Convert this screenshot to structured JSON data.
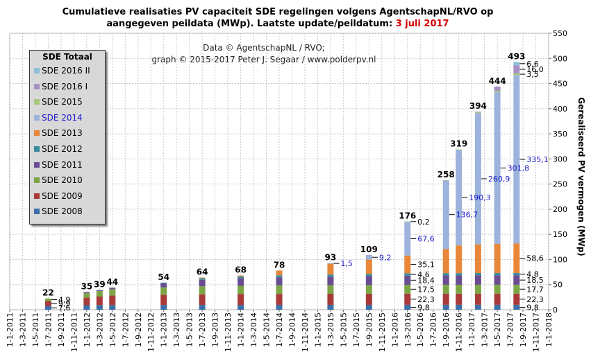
{
  "title": {
    "line1": "Cumulatieve realisaties PV capaciteit SDE regelingen volgens AgentschapNL/RVO  op",
    "line2_prefix": "aangegeven peildata (MWp). Laatste update/peildatum:",
    "line2_date": "3 juli 2017"
  },
  "credit": {
    "line1": "Data © AgentschapNL / RVO;",
    "line2": "graph © 2015-2017 Peter J. Segaar / www.polderpv.nl"
  },
  "legend": {
    "title": "SDE Totaal",
    "items": [
      {
        "label": "SDE 2016 II",
        "color": "#8fbfd8",
        "text_color": "#000000"
      },
      {
        "label": "SDE 2016 I",
        "color": "#a88fc4",
        "text_color": "#000000"
      },
      {
        "label": "SDE 2015",
        "color": "#a5c878",
        "text_color": "#000000"
      },
      {
        "label": "SDE 2014",
        "color": "#9db3dc",
        "text_color": "#1a1acc"
      },
      {
        "label": "SDE 2013",
        "color": "#e8873a",
        "text_color": "#000000"
      },
      {
        "label": "SDE 2012",
        "color": "#3a8c9c",
        "text_color": "#000000"
      },
      {
        "label": "SDE 2011",
        "color": "#6a4c92",
        "text_color": "#000000"
      },
      {
        "label": "SDE 2010",
        "color": "#7ca645",
        "text_color": "#000000"
      },
      {
        "label": "SDE 2009",
        "color": "#a83a3a",
        "text_color": "#000000"
      },
      {
        "label": "SDE 2008",
        "color": "#3c6ea8",
        "text_color": "#000000"
      }
    ]
  },
  "chart_data": {
    "type": "bar",
    "stacked": true,
    "ylabel": "Gerealiseerd PV vermogen (MWp)",
    "ylim": [
      0,
      550
    ],
    "yticks": [
      0,
      50,
      100,
      150,
      200,
      250,
      300,
      350,
      400,
      450,
      500,
      550
    ],
    "y_axis_side": "right",
    "grid": true,
    "legend_position": "top-left",
    "x_tick_labels": [
      "1-1-2011",
      "1-3-2011",
      "1-5-2011",
      "1-7-2011",
      "1-9-2011",
      "1-11-2011",
      "1-1-2012",
      "1-3-2012",
      "1-5-2012",
      "1-7-2012",
      "1-9-2012",
      "1-11-2012",
      "1-1-2013",
      "1-3-2013",
      "1-5-2013",
      "1-7-2013",
      "1-9-2013",
      "1-11-2013",
      "1-1-2014",
      "1-3-2014",
      "1-5-2014",
      "1-7-2014",
      "1-9-2014",
      "1-11-2014",
      "1-1-2015",
      "1-3-2015",
      "1-5-2015",
      "1-7-2015",
      "1-9-2015",
      "1-11-2015",
      "1-1-2016",
      "1-3-2016",
      "1-5-2016",
      "1-7-2016",
      "1-9-2016",
      "1-11-2016",
      "1-1-2017",
      "1-3-2017",
      "1-5-2017",
      "1-7-2017",
      "1-9-2017",
      "1-11-2017",
      "1-1-2018"
    ],
    "series_order": [
      "SDE 2008",
      "SDE 2009",
      "SDE 2010",
      "SDE 2011",
      "SDE 2012",
      "SDE 2013",
      "SDE 2014",
      "SDE 2015",
      "SDE 2016 I",
      "SDE 2016 II"
    ],
    "bars": [
      {
        "slot": 3.0,
        "total": "22",
        "segments": [
          7.6,
          9.9,
          4.9,
          0,
          0,
          0,
          0,
          0,
          0,
          0
        ]
      },
      {
        "slot": 6.0,
        "total": "35",
        "segments": [
          9.0,
          15.0,
          9.0,
          2.0,
          0,
          0,
          0,
          0,
          0,
          0
        ]
      },
      {
        "slot": 7.0,
        "total": "39",
        "segments": [
          9.2,
          17.0,
          11.0,
          1.8,
          0,
          0,
          0,
          0,
          0,
          0
        ]
      },
      {
        "slot": 8.0,
        "total": "44",
        "segments": [
          9.4,
          19.0,
          12.5,
          3.1,
          0,
          0,
          0,
          0,
          0,
          0
        ]
      },
      {
        "slot": 12.0,
        "total": "54",
        "segments": [
          9.5,
          20.0,
          15.0,
          8.0,
          1.5,
          0,
          0,
          0,
          0,
          0
        ]
      },
      {
        "slot": 15.0,
        "total": "64",
        "segments": [
          9.6,
          21.0,
          16.0,
          13.0,
          3.0,
          1.4,
          0,
          0,
          0,
          0
        ]
      },
      {
        "slot": 18.0,
        "total": "68",
        "segments": [
          9.6,
          21.5,
          16.5,
          15.0,
          3.5,
          1.9,
          0,
          0,
          0,
          0
        ]
      },
      {
        "slot": 21.0,
        "total": "78",
        "segments": [
          9.7,
          21.8,
          17.0,
          16.0,
          4.0,
          9.5,
          0,
          0,
          0,
          0
        ]
      },
      {
        "slot": 25.0,
        "total": "93",
        "segments": [
          9.7,
          22.0,
          17.2,
          17.0,
          4.2,
          21.4,
          1.5,
          0,
          0,
          0
        ]
      },
      {
        "slot": 28.0,
        "total": "109",
        "segments": [
          9.7,
          22.1,
          17.3,
          17.8,
          4.3,
          28.6,
          9.2,
          0,
          0,
          0
        ]
      },
      {
        "slot": 31.0,
        "total": "176",
        "segments": [
          9.8,
          22.3,
          17.5,
          18.4,
          4.6,
          35.1,
          67.6,
          0.2,
          0,
          0
        ]
      },
      {
        "slot": 34.0,
        "total": "258",
        "segments": [
          9.8,
          22.3,
          17.6,
          18.5,
          4.7,
          48.0,
          136.7,
          0.4,
          0,
          0
        ]
      },
      {
        "slot": 35.0,
        "total": "319",
        "segments": [
          9.8,
          22.3,
          17.6,
          18.5,
          4.7,
          55.0,
          190.3,
          0.8,
          0,
          0
        ]
      },
      {
        "slot": 36.5,
        "total": "394",
        "segments": [
          9.8,
          22.3,
          17.7,
          18.5,
          4.8,
          57.0,
          260.9,
          1.5,
          1.5,
          0
        ]
      },
      {
        "slot": 38.0,
        "total": "444",
        "segments": [
          9.8,
          22.3,
          17.7,
          18.5,
          4.8,
          58.0,
          301.8,
          2.5,
          8.6,
          0
        ]
      },
      {
        "slot": 39.5,
        "total": "493",
        "segments": [
          9.8,
          22.3,
          17.7,
          18.5,
          4.8,
          58.6,
          335.1,
          3.5,
          16.0,
          6.6
        ]
      }
    ],
    "annotations": [
      {
        "bar": 0,
        "seg": 0,
        "text": "7,6",
        "blue": false
      },
      {
        "bar": 0,
        "seg": 1,
        "text": "9,9",
        "blue": false
      },
      {
        "bar": 0,
        "seg": 2,
        "text": "4,9",
        "blue": false
      },
      {
        "bar": 8,
        "seg": 6,
        "text": "1,5",
        "blue": true
      },
      {
        "bar": 9,
        "seg": 6,
        "text": "9,2",
        "blue": true
      },
      {
        "bar": 10,
        "seg": 0,
        "text": "9,8",
        "blue": false
      },
      {
        "bar": 10,
        "seg": 1,
        "text": "22,3",
        "blue": false
      },
      {
        "bar": 10,
        "seg": 2,
        "text": "17,5",
        "blue": false
      },
      {
        "bar": 10,
        "seg": 3,
        "text": "18,4",
        "blue": false
      },
      {
        "bar": 10,
        "seg": 4,
        "text": "4,6",
        "blue": false
      },
      {
        "bar": 10,
        "seg": 5,
        "text": "35,1",
        "blue": false
      },
      {
        "bar": 10,
        "seg": 6,
        "text": "67,6",
        "blue": true
      },
      {
        "bar": 10,
        "seg": 7,
        "text": "0,2",
        "blue": false
      },
      {
        "bar": 11,
        "seg": 6,
        "text": "136,7",
        "blue": true
      },
      {
        "bar": 12,
        "seg": 6,
        "text": "190,3",
        "blue": true
      },
      {
        "bar": 13,
        "seg": 6,
        "text": "260,9",
        "blue": true
      },
      {
        "bar": 14,
        "seg": 6,
        "text": "301,8",
        "blue": true
      },
      {
        "bar": 15,
        "seg": 0,
        "text": "9,8",
        "blue": false
      },
      {
        "bar": 15,
        "seg": 1,
        "text": "22,3",
        "blue": false
      },
      {
        "bar": 15,
        "seg": 2,
        "text": "17,7",
        "blue": false
      },
      {
        "bar": 15,
        "seg": 3,
        "text": "18,5",
        "blue": false
      },
      {
        "bar": 15,
        "seg": 4,
        "text": "4,8",
        "blue": false
      },
      {
        "bar": 15,
        "seg": 5,
        "text": "58,6",
        "blue": false
      },
      {
        "bar": 15,
        "seg": 6,
        "text": "335,1",
        "blue": true
      },
      {
        "bar": 15,
        "seg": 7,
        "text": "3,5",
        "blue": false
      },
      {
        "bar": 15,
        "seg": 8,
        "text": "16,0",
        "blue": false
      },
      {
        "bar": 15,
        "seg": 9,
        "text": "6,6",
        "blue": false
      }
    ]
  }
}
